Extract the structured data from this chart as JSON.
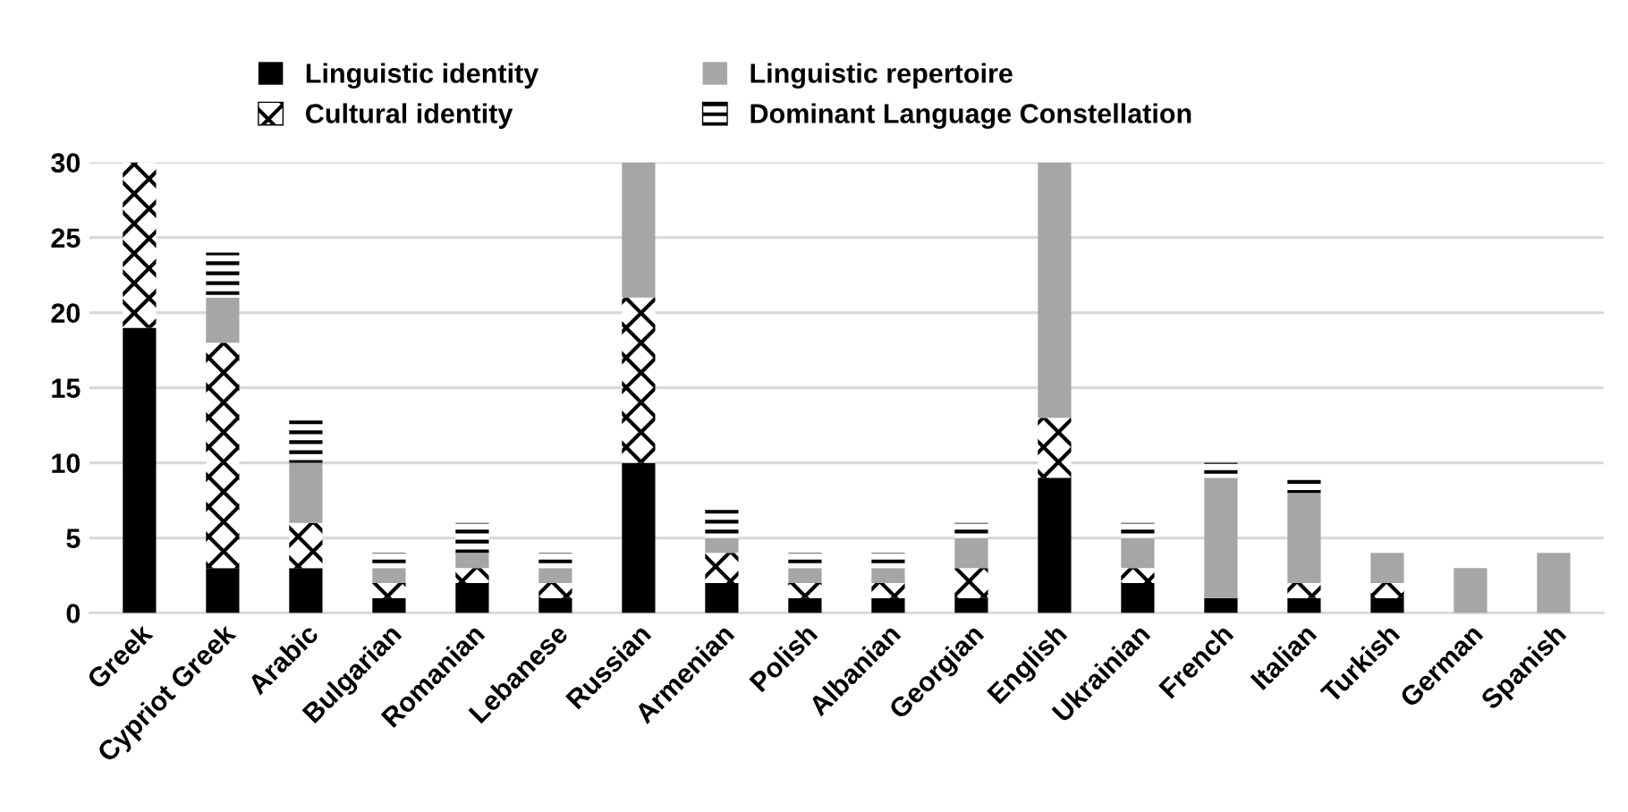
{
  "chart_data": {
    "type": "bar",
    "stacked": true,
    "categories": [
      "Greek",
      "Cypriot Greek",
      "Arabic",
      "Bulgarian",
      "Romanian",
      "Lebanese",
      "Russian",
      "Armenian",
      "Polish",
      "Albanian",
      "Georgian",
      "English",
      "Ukrainian",
      "French",
      "Italian",
      "Turkish",
      "German",
      "Spanish"
    ],
    "series": [
      {
        "name": "Linguistic identity",
        "color": "#000000",
        "values": [
          19,
          3,
          3,
          1,
          2,
          1,
          10,
          2,
          1,
          1,
          1,
          9,
          2,
          1,
          1,
          1,
          0,
          0
        ]
      },
      {
        "name": "Cultural identity",
        "color": "#ffffff",
        "values": [
          11,
          15,
          3,
          1,
          1,
          1,
          11,
          2,
          1,
          1,
          2,
          4,
          1,
          0,
          1,
          1,
          0,
          0
        ]
      },
      {
        "name": "Linguistic repertoire",
        "color": "#a6a6a6",
        "values": [
          0,
          3,
          4,
          1,
          1,
          1,
          9,
          1,
          1,
          1,
          2,
          17,
          2,
          8,
          6,
          2,
          3,
          4
        ]
      },
      {
        "name": "Dominant Language Constellation",
        "color": "#000000",
        "values": [
          0,
          3,
          3,
          1,
          2,
          1,
          0,
          2,
          1,
          1,
          1,
          0,
          1,
          1,
          1,
          0,
          0,
          0
        ]
      }
    ],
    "ylim": [
      0,
      30
    ],
    "yticks": [
      0,
      5,
      10,
      15,
      20,
      25,
      30
    ],
    "grid": "y",
    "legend": "top"
  }
}
